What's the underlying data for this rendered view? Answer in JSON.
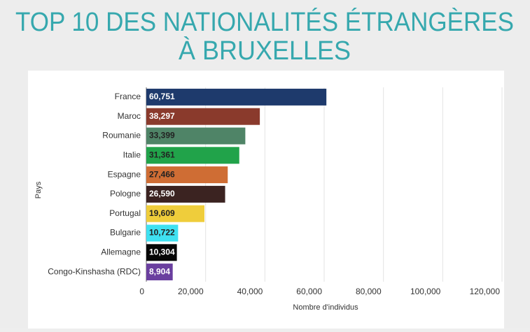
{
  "chart_data": {
    "type": "bar",
    "orientation": "horizontal",
    "title": [
      "TOP 10 DES NATIONALITÉS ÉTRANGÈRES",
      "À BRUXELLES"
    ],
    "x_label": "Nombre d'individus",
    "y_label": "Pays",
    "categories": [
      "France",
      "Maroc",
      "Roumanie",
      "Italie",
      "Espagne",
      "Pologne",
      "Portugal",
      "Bulgarie",
      "Allemagne",
      "Congo-Kinshasha (RDC)"
    ],
    "values": [
      60751,
      38297,
      33399,
      31361,
      27466,
      26590,
      19609,
      10722,
      10304,
      8904
    ],
    "value_labels": [
      "60,751",
      "38,297",
      "33,399",
      "31,361",
      "27,466",
      "26,590",
      "19,609",
      "10,722",
      "10,304",
      "8,904"
    ],
    "colors": [
      "#1e3a6c",
      "#8a3a2c",
      "#4f8467",
      "#21a34a",
      "#cf6d34",
      "#3b2321",
      "#efcd3b",
      "#3fe1f1",
      "#060606",
      "#6a3f9f"
    ],
    "xlim": [
      0,
      120000
    ],
    "xticks": [
      0,
      {
        "value": 20000,
        "label": "20,000"
      },
      {
        "value": 40000,
        "label": "40,000"
      },
      {
        "value": 60000,
        "label": "60,000"
      },
      {
        "value": 80000,
        "label": "80,000"
      },
      {
        "value": 100000,
        "label": "100,000"
      },
      {
        "value": 120000,
        "label": "120,000"
      }
    ],
    "grid": true
  }
}
